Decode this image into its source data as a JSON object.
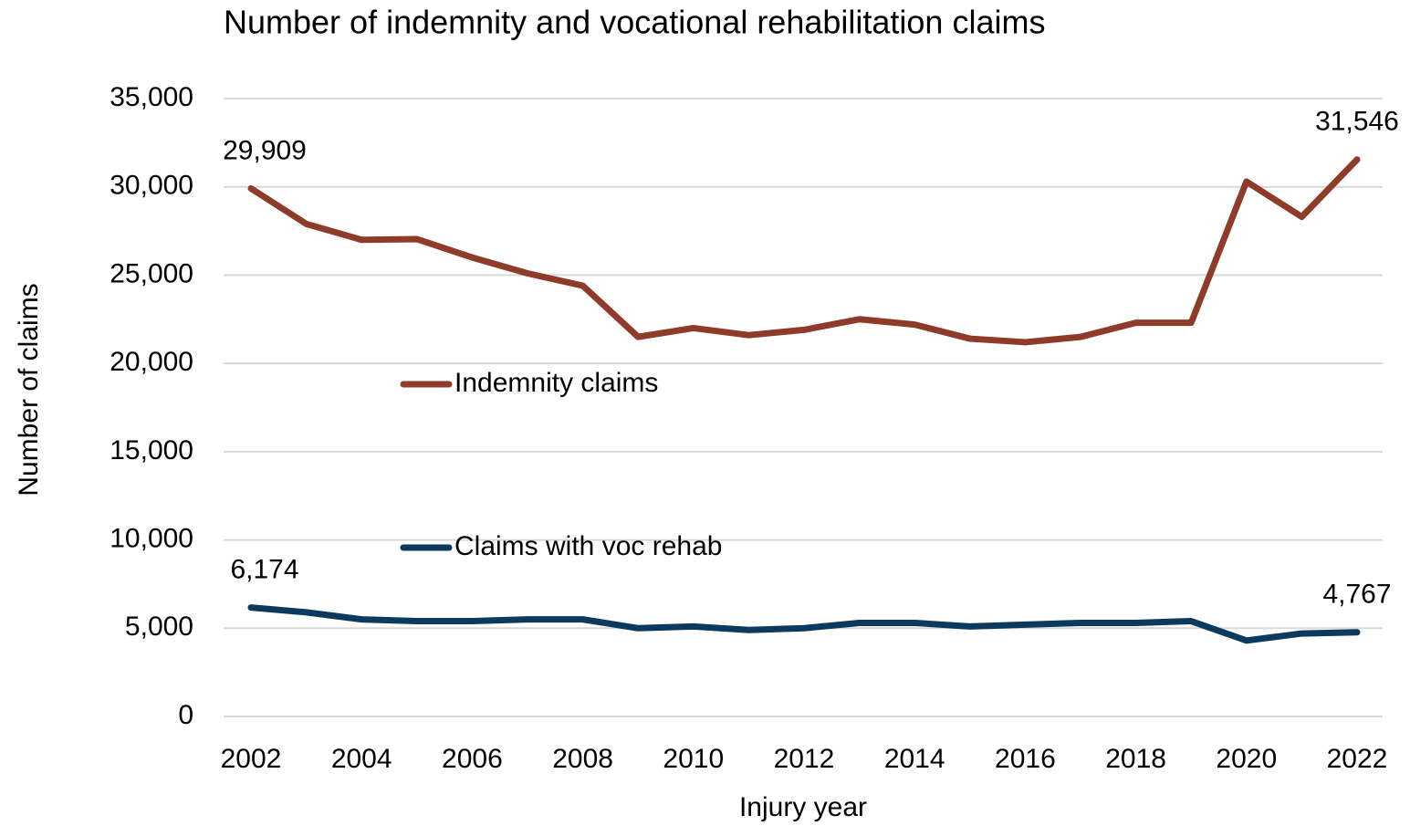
{
  "chart_data": {
    "type": "line",
    "title": "Number of indemnity and vocational rehabilitation claims",
    "x_label": "Injury year",
    "y_label": "Number of claims",
    "x": [
      2002,
      2003,
      2004,
      2005,
      2006,
      2007,
      2008,
      2009,
      2010,
      2011,
      2012,
      2013,
      2014,
      2015,
      2016,
      2017,
      2018,
      2019,
      2020,
      2021,
      2022
    ],
    "series": [
      {
        "name": "Indemnity claims",
        "color": "#8e3b2a",
        "values": [
          29909,
          27900,
          27000,
          27040,
          26000,
          25100,
          24400,
          21500,
          22000,
          21600,
          21900,
          22500,
          22200,
          21400,
          21200,
          21500,
          22300,
          22300,
          30300,
          28300,
          31546
        ],
        "value_labels": [
          "29,909",
          null,
          null,
          null,
          null,
          null,
          null,
          null,
          null,
          null,
          null,
          null,
          null,
          null,
          null,
          null,
          null,
          null,
          null,
          null,
          "31,546"
        ]
      },
      {
        "name": "Claims with voc rehab",
        "color": "#0b3a5e",
        "values": [
          6174,
          5900,
          5500,
          5400,
          5400,
          5500,
          5500,
          5000,
          5100,
          4900,
          5000,
          5300,
          5300,
          5100,
          5200,
          5300,
          5300,
          5400,
          4300,
          4700,
          4767
        ],
        "value_labels": [
          "6,174",
          null,
          null,
          null,
          null,
          null,
          null,
          null,
          null,
          null,
          null,
          null,
          null,
          null,
          null,
          null,
          null,
          null,
          null,
          null,
          "4,767"
        ]
      }
    ],
    "xlim": [
      2002,
      2022
    ],
    "xticks": [
      2002,
      2004,
      2006,
      2008,
      2010,
      2012,
      2014,
      2016,
      2018,
      2020,
      2022
    ],
    "ylim": [
      0,
      35000
    ],
    "yticks": [
      0,
      {
        "value": 5000,
        "label": "5,000"
      },
      {
        "value": 10000,
        "label": "10,000"
      },
      {
        "value": 15000,
        "label": "15,000"
      },
      {
        "value": 20000,
        "label": "20,000"
      },
      {
        "value": 25000,
        "label": "25,000"
      },
      {
        "value": 30000,
        "label": "30,000"
      },
      {
        "value": 35000,
        "label": "35,000"
      }
    ],
    "grid": true,
    "legend": "inside"
  }
}
